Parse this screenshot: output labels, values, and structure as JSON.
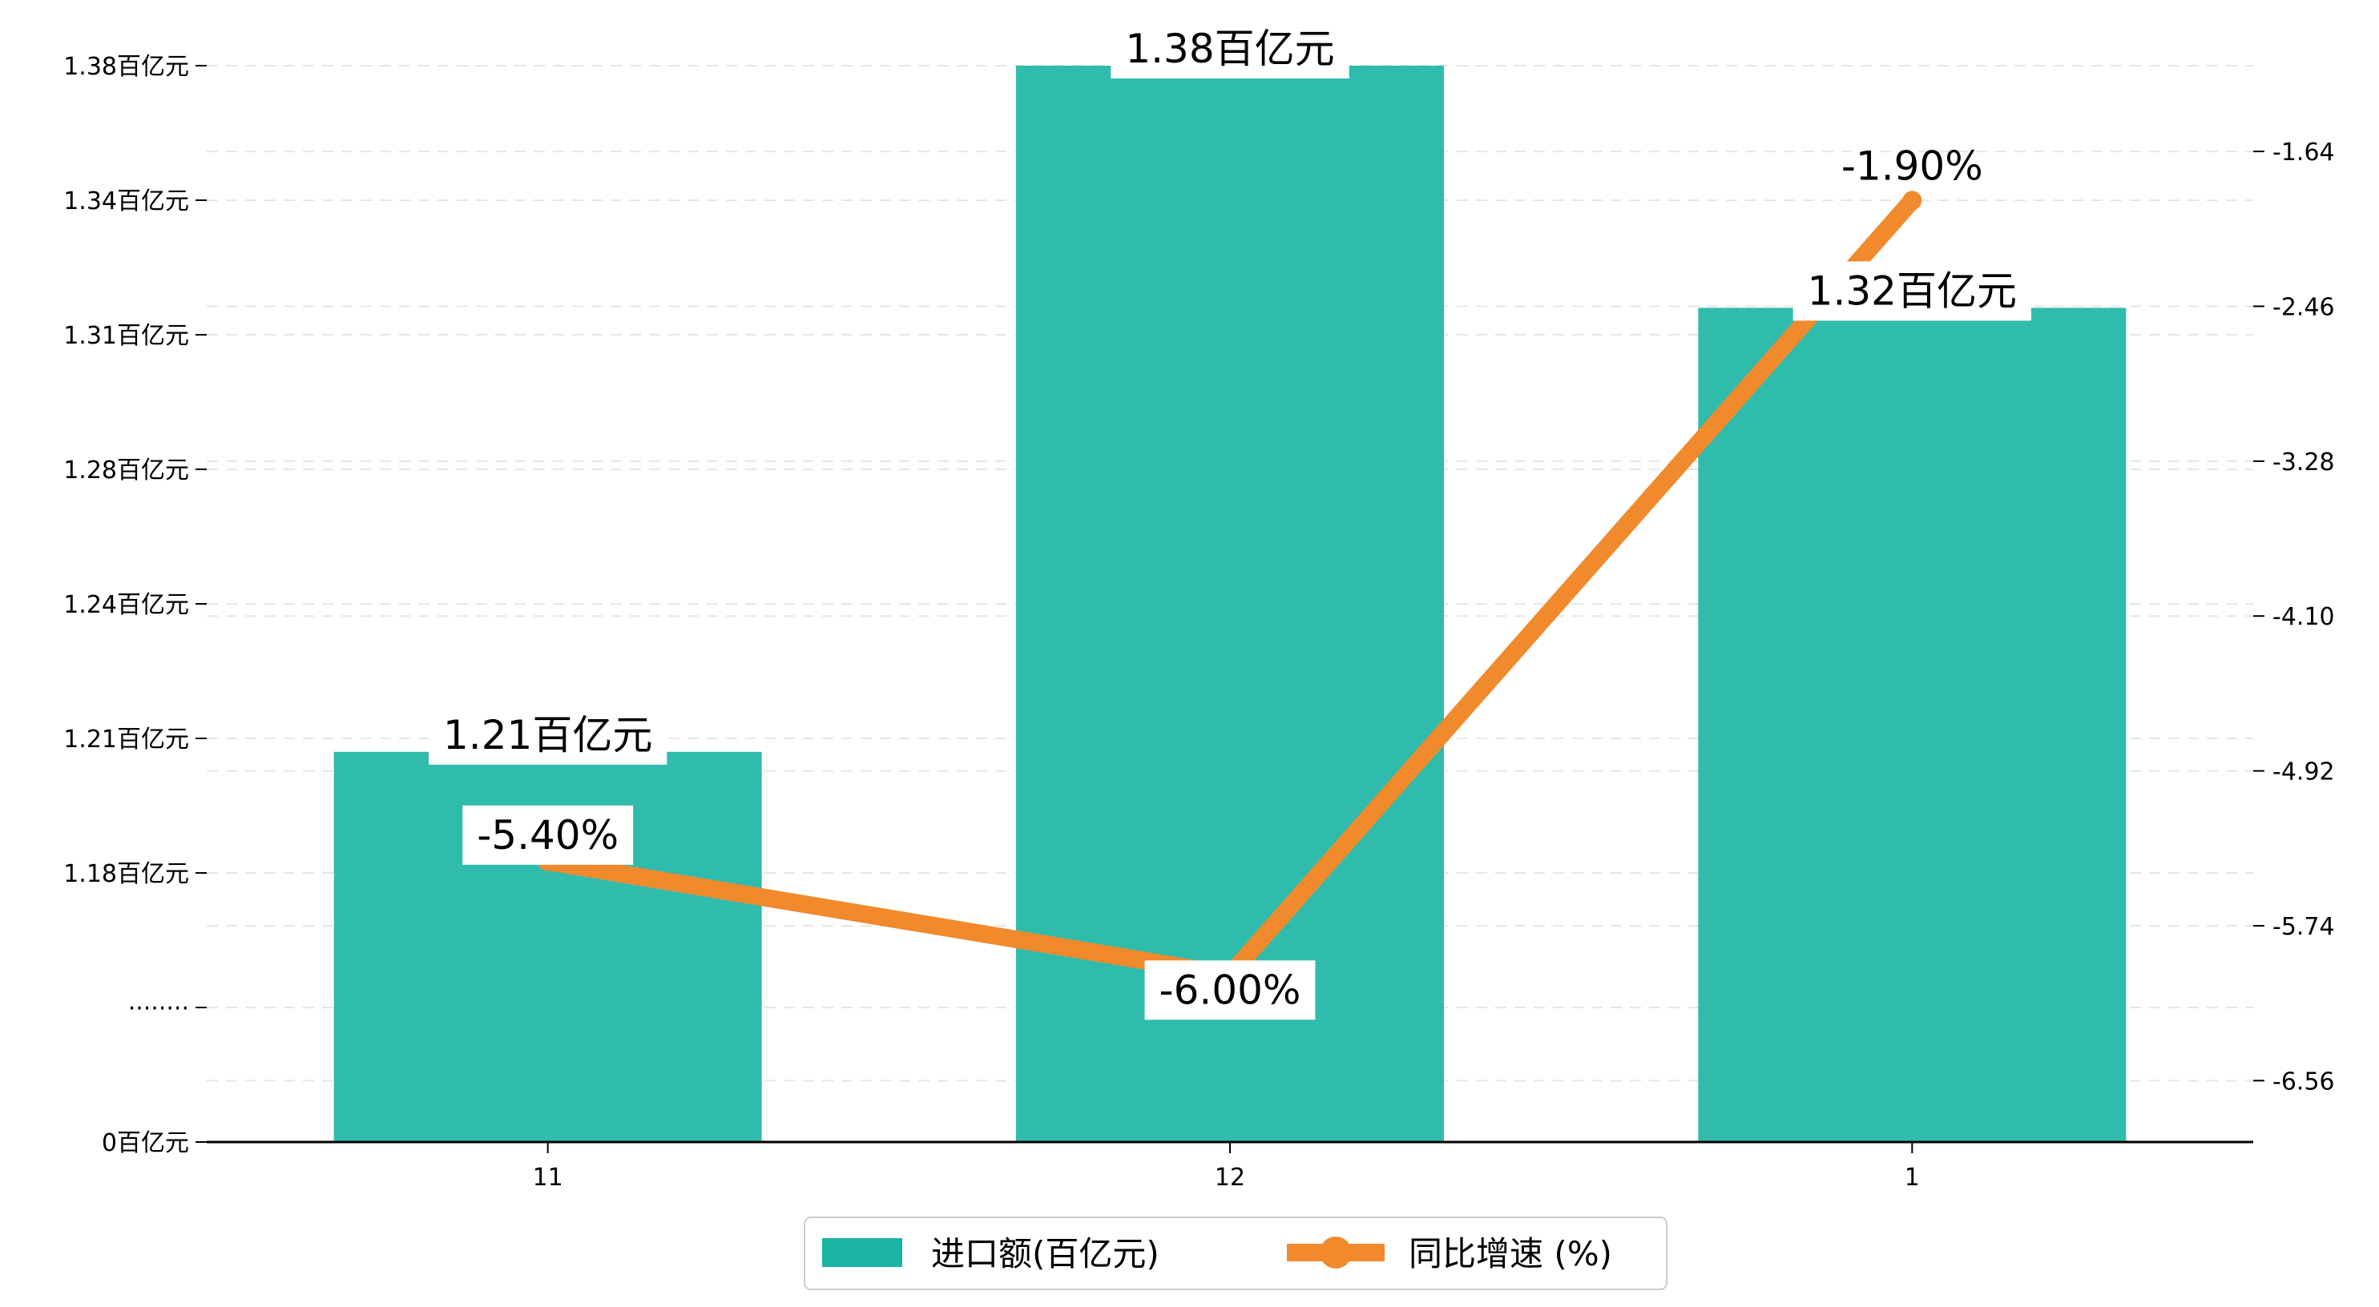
{
  "chart_data": {
    "type": "bar+line",
    "categories": [
      "11",
      "12",
      "1"
    ],
    "series": [
      {
        "name": "进口额(百亿元)",
        "type": "bar",
        "axis": "left",
        "values": [
          1.21,
          1.38,
          1.32
        ],
        "labels": [
          "1.21百亿元",
          "1.38百亿元",
          "1.32百亿元"
        ],
        "color": "#1ab5a3"
      },
      {
        "name": "同比增速 (%)",
        "type": "line",
        "axis": "right",
        "values": [
          -5.4,
          -6.0,
          -1.9
        ],
        "labels": [
          "-5.40%",
          "-6.00%",
          "-1.90%"
        ],
        "color": "#f08a2c"
      }
    ],
    "y_left": {
      "ticks": [
        {
          "label": "0百亿元"
        },
        {
          "label": "········"
        },
        {
          "label": "1.18百亿元"
        },
        {
          "label": "1.21百亿元"
        },
        {
          "label": "1.24百亿元"
        },
        {
          "label": "1.28百亿元"
        },
        {
          "label": "1.31百亿元"
        },
        {
          "label": "1.34百亿元"
        },
        {
          "label": "1.38百亿元"
        }
      ]
    },
    "y_right": {
      "ylim": [
        -6.885,
        -1.186
      ],
      "ticks": [
        -6.56,
        -5.74,
        -4.92,
        -4.1,
        -3.28,
        -2.46,
        -1.64
      ],
      "tick_labels": [
        "-6.56",
        "-5.74",
        "-4.92",
        "-4.10",
        "-3.28",
        "-2.46",
        "-1.64"
      ]
    },
    "grid": true,
    "legend": "bottom-center"
  }
}
